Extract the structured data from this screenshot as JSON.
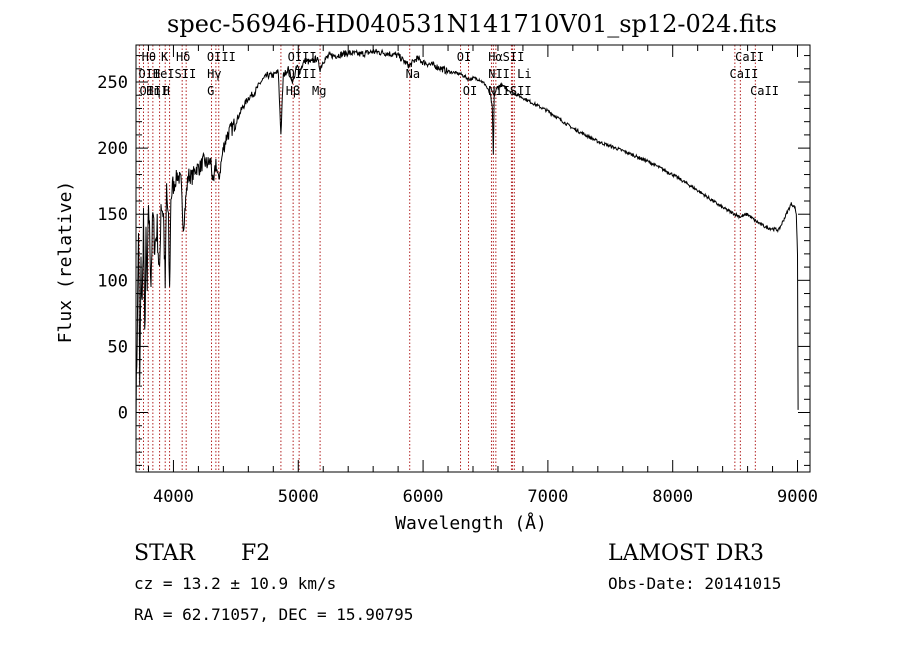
{
  "chart_data": {
    "type": "line",
    "title": "spec-56946-HD040531N141710V01_sp12-024.fits",
    "xlabel": "Wavelength (Å)",
    "ylabel": "Flux (relative)",
    "xlim": [
      3700,
      9100
    ],
    "ylim": [
      -45,
      278
    ],
    "xticks": [
      4000,
      5000,
      6000,
      7000,
      8000,
      9000
    ],
    "yticks": [
      0,
      50,
      100,
      150,
      200,
      250
    ],
    "series": [
      {
        "color": "#000000",
        "x": [
          3700,
          3710,
          3720,
          3730,
          3740,
          3750,
          3760,
          3770,
          3780,
          3790,
          3800,
          3820,
          3835,
          3850,
          3870,
          3889,
          3900,
          3920,
          3934,
          3945,
          3960,
          3969,
          3980,
          4000,
          4030,
          4060,
          4080,
          4102,
          4120,
          4150,
          4180,
          4210,
          4240,
          4270,
          4300,
          4320,
          4340,
          4360,
          4400,
          4430,
          4470,
          4500,
          4550,
          4600,
          4650,
          4700,
          4750,
          4800,
          4840,
          4861,
          4880,
          4920,
          4957,
          4990,
          5010,
          5050,
          5100,
          5150,
          5175,
          5200,
          5250,
          5300,
          5400,
          5500,
          5600,
          5700,
          5800,
          5890,
          5950,
          6000,
          6100,
          6200,
          6300,
          6370,
          6400,
          6450,
          6500,
          6540,
          6555,
          6563,
          6570,
          6590,
          6620,
          6700,
          6800,
          6900,
          7000,
          7200,
          7400,
          7600,
          7800,
          8000,
          8200,
          8400,
          8498,
          8542,
          8600,
          8662,
          8750,
          8850,
          8950,
          8980,
          8990,
          9000,
          9005
        ],
        "y": [
          0,
          60,
          140,
          20,
          110,
          80,
          150,
          55,
          130,
          90,
          160,
          100,
          150,
          125,
          140,
          100,
          160,
          150,
          95,
          170,
          140,
          90,
          165,
          170,
          180,
          175,
          140,
          165,
          180,
          178,
          185,
          185,
          190,
          188,
          190,
          170,
          190,
          175,
          200,
          210,
          215,
          220,
          230,
          238,
          242,
          250,
          255,
          255,
          258,
          210,
          255,
          260,
          250,
          262,
          258,
          266,
          265,
          268,
          260,
          266,
          270,
          270,
          272,
          271,
          273,
          272,
          270,
          262,
          268,
          265,
          262,
          258,
          256,
          252,
          253,
          252,
          248,
          240,
          230,
          195,
          240,
          245,
          248,
          243,
          238,
          233,
          228,
          215,
          205,
          198,
          190,
          180,
          168,
          155,
          150,
          148,
          150,
          145,
          140,
          138,
          158,
          155,
          150,
          120,
          2
        ]
      }
    ],
    "lines": [
      {
        "label": "Hθ",
        "x": 3798
      },
      {
        "label": "OII",
        "x": 3727
      },
      {
        "label": "OIII",
        "x": 3760
      },
      {
        "label": "Hη",
        "x": 3835
      },
      {
        "label": "HeI",
        "x": 3889
      },
      {
        "label": "K",
        "x": 3934
      },
      {
        "label": "H",
        "x": 3969
      },
      {
        "label": "SII",
        "x": 4070
      },
      {
        "label": "Hδ",
        "x": 4102
      },
      {
        "label": "OIII",
        "x": 4363
      },
      {
        "label": "Hγ",
        "x": 4340
      },
      {
        "label": "G",
        "x": 4305
      },
      {
        "label": "OIII",
        "x": 4959
      },
      {
        "label": "OIII",
        "x": 5007
      },
      {
        "label": "Hβ",
        "x": 4861
      },
      {
        "label": "Mg",
        "x": 5175
      },
      {
        "label": "Na",
        "x": 5893
      },
      {
        "label": "OI",
        "x": 6300
      },
      {
        "label": "OI",
        "x": 6364
      },
      {
        "label": "Hα",
        "x": 6563
      },
      {
        "label": "NII",
        "x": 6548
      },
      {
        "label": "NII",
        "x": 6583
      },
      {
        "label": "SII",
        "x": 6716
      },
      {
        "label": "Li",
        "x": 6708
      },
      {
        "label": "SII",
        "x": 6731
      },
      {
        "label": "CaII",
        "x": 8498
      },
      {
        "label": "CaII",
        "x": 8542
      },
      {
        "label": "CaII",
        "x": 8662
      }
    ],
    "line_label_texts": [
      {
        "text": "Hθ",
        "x": 3745,
        "row": 0
      },
      {
        "text": "Hδ",
        "x": 4020,
        "row": 0
      },
      {
        "text": "OII",
        "x": 3720,
        "row": 1
      },
      {
        "text": "OIII",
        "x": 3728,
        "row": 2
      },
      {
        "text": "K",
        "x": 3900,
        "row": 0
      },
      {
        "text": "HeISII",
        "x": 3835,
        "row": 1
      },
      {
        "text": "Hη",
        "x": 3782,
        "row": 2
      },
      {
        "text": "H",
        "x": 3913,
        "row": 2
      },
      {
        "text": "OIII",
        "x": 4268,
        "row": 0
      },
      {
        "text": "Hγ",
        "x": 4270,
        "row": 1
      },
      {
        "text": "G",
        "x": 4270,
        "row": 2
      },
      {
        "text": "OIII",
        "x": 4915,
        "row": 0
      },
      {
        "text": "OIII",
        "x": 4915,
        "row": 1
      },
      {
        "text": "Hβ",
        "x": 4900,
        "row": 2
      },
      {
        "text": "Mg",
        "x": 5110,
        "row": 2
      },
      {
        "text": "Na",
        "x": 5860,
        "row": 1
      },
      {
        "text": "OI",
        "x": 6270,
        "row": 0
      },
      {
        "text": "OI",
        "x": 6318,
        "row": 2
      },
      {
        "text": "HαSII",
        "x": 6522,
        "row": 0
      },
      {
        "text": "NII Li",
        "x": 6522,
        "row": 1
      },
      {
        "text": "NIISII",
        "x": 6522,
        "row": 2
      },
      {
        "text": "CaII",
        "x": 8500,
        "row": 0
      },
      {
        "text": "CaII",
        "x": 8455,
        "row": 1
      },
      {
        "text": "CaII",
        "x": 8620,
        "row": 2
      }
    ]
  },
  "info": {
    "obj_class": "STAR",
    "subclass": "F2",
    "survey": "LAMOST DR3",
    "cz": "cz = 13.2 ± 10.9 km/s",
    "obs_date": "Obs-Date: 20141015",
    "radec": "RA =  62.71057, DEC =  15.90795"
  },
  "colors": {
    "spectrum": "#000000",
    "line_marker": "#b22222"
  }
}
